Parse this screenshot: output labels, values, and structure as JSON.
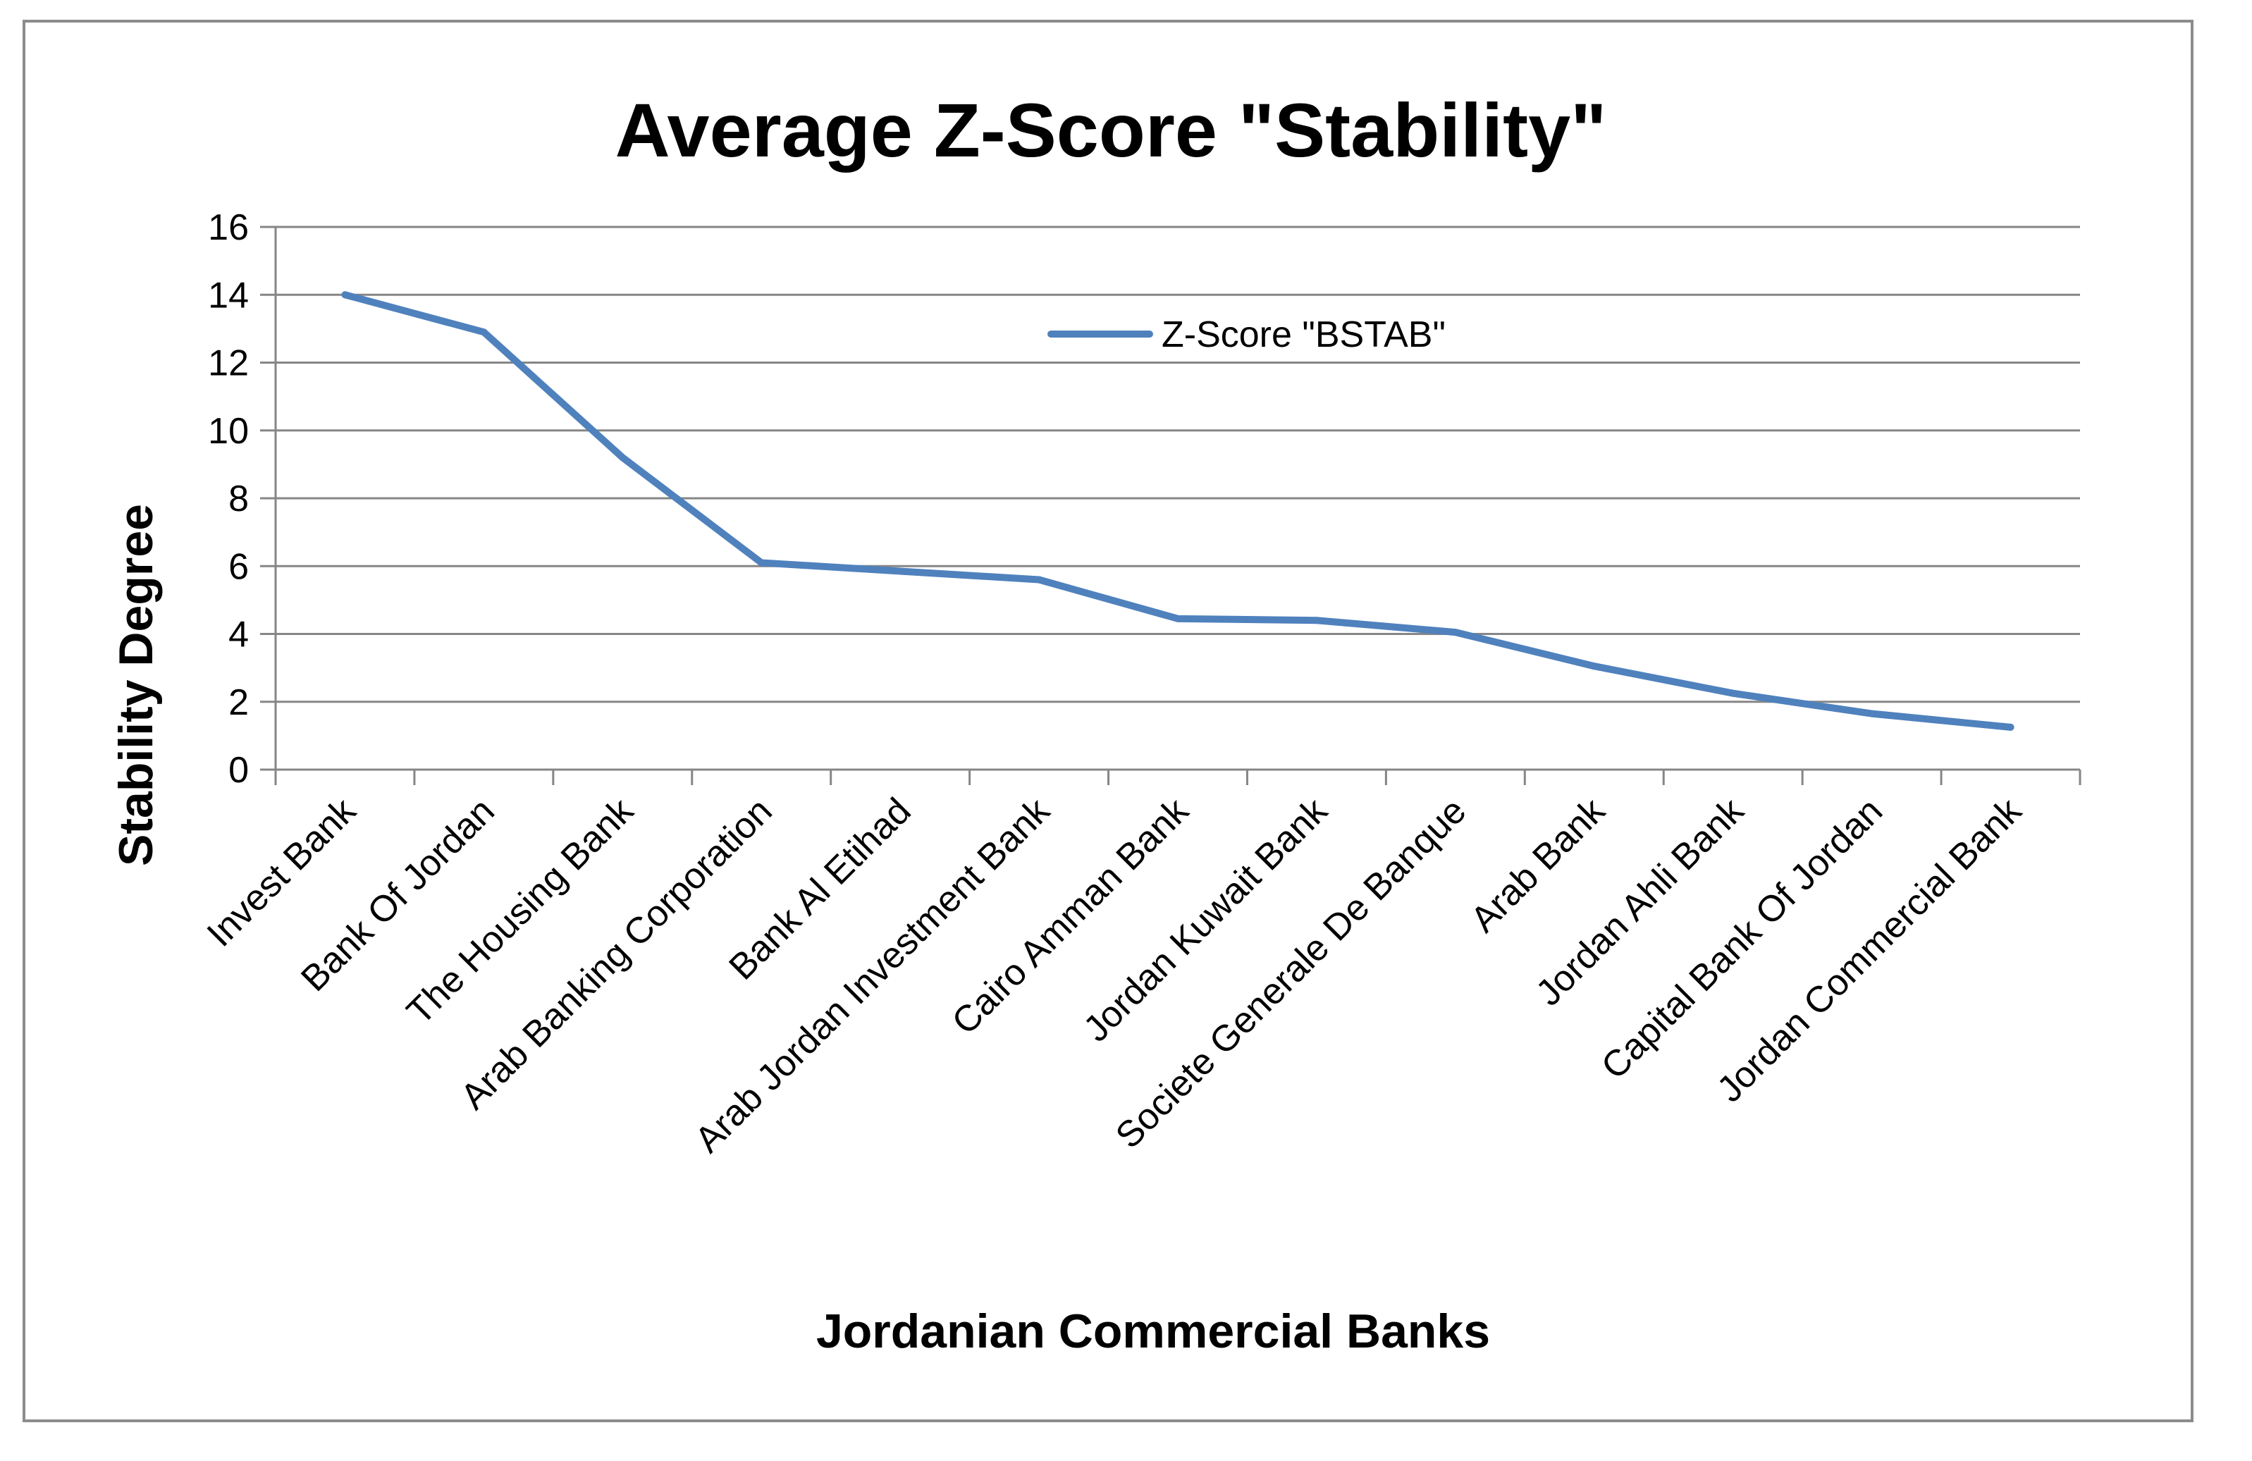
{
  "chart_data": {
    "type": "line",
    "title": "Average Z-Score \"Stability\"",
    "xlabel": "Jordanian  Commercial Banks",
    "ylabel": "Stability Degree",
    "ylim": [
      0,
      16
    ],
    "yticks": [
      0,
      2,
      4,
      6,
      8,
      10,
      12,
      14,
      16
    ],
    "grid": true,
    "legend_position": "top-center",
    "categories": [
      "Invest Bank",
      "Bank Of Jordan",
      "The Housing Bank",
      "Arab Banking Corporation",
      "Bank Al Etihad",
      "Arab Jordan Investment Bank",
      "Cairo Amman Bank",
      "Jordan Kuwait Bank",
      "Societe Generale De Banque",
      "Arab Bank",
      "Jordan Ahli Bank",
      "Capital Bank Of Jordan",
      "Jordan Commercial  Bank"
    ],
    "series": [
      {
        "name": "Z-Score \"BSTAB\"",
        "color": "#4f81bd",
        "values": [
          14.0,
          12.9,
          9.2,
          6.1,
          5.85,
          5.6,
          4.45,
          4.4,
          4.05,
          3.05,
          2.25,
          1.65,
          1.25
        ]
      }
    ]
  }
}
